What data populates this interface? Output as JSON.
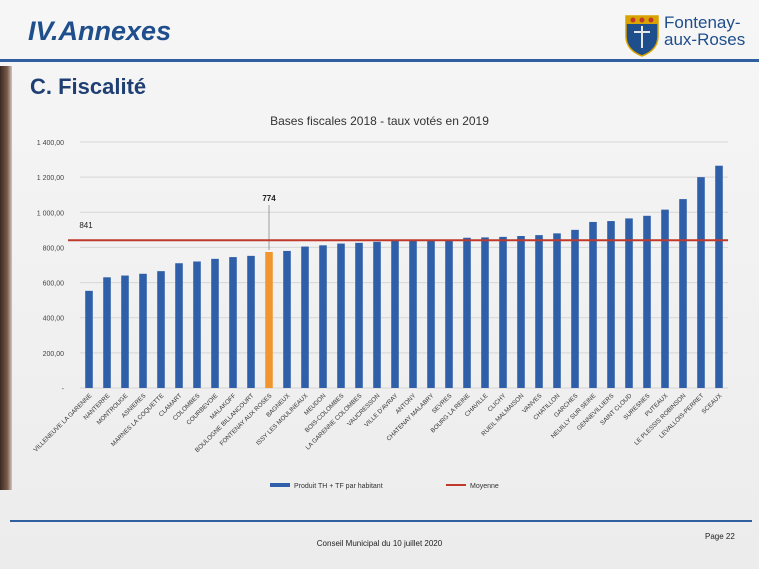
{
  "slide": {
    "title": "IV.Annexes",
    "section": "C. Fiscalité",
    "logo_text_1": "Fontenay-",
    "logo_text_2": "aux-Roses",
    "footer": "Conseil Municipal du 10 juillet 2020",
    "page": "Page 22"
  },
  "colors": {
    "bar": "#2e5fa8",
    "highlight": "#f0962e",
    "average": "#c0392b",
    "accent": "#1f4e8c"
  },
  "chart_data": {
    "type": "bar",
    "title": "Bases fiscales 2018 - taux votés en 2019",
    "categories": [
      "VILLENEUVE LA GARENNE",
      "NANTERRE",
      "MONTROUGE",
      "ASNIERES",
      "MARNES LA COQUETTE",
      "CLAMART",
      "COLOMBES",
      "COURBEVOIE",
      "MALAKOFF",
      "BOULOGNE BILLANCOURT",
      "FONTENAY AUX ROSES",
      "BAGNEUX",
      "ISSY LES MOULINEAUX",
      "MEUDON",
      "BOIS-COLOMBES",
      "LA GARENNE COLOMBES",
      "VAUCRESSON",
      "VILLE D'AVRAY",
      "ANTONY",
      "CHATENAY MALABRY",
      "SEVRES",
      "BOURG LA REINE",
      "CHAVILLE",
      "CLICHY",
      "RUEIL MALMAISON",
      "VANVES",
      "CHATILLON",
      "GARCHES",
      "NEUILLY SUR SEINE",
      "GENNEVILLIERS",
      "SAINT CLOUD",
      "SURESNES",
      "PUTEAUX",
      "LE PLESSIS ROBINSON",
      "LEVALLOIS-PERRET",
      "SCEAUX"
    ],
    "values": [
      553,
      630,
      640,
      650,
      665,
      710,
      720,
      735,
      745,
      752,
      774,
      780,
      805,
      812,
      822,
      826,
      832,
      838,
      840,
      842,
      845,
      855,
      857,
      860,
      865,
      870,
      880,
      900,
      945,
      950,
      965,
      980,
      1015,
      1075,
      1200,
      1265
    ],
    "highlight_category": "FONTENAY AUX ROSES",
    "highlight_label": "774",
    "average": {
      "name": "Moyenne",
      "value": 841,
      "label": "841"
    },
    "series_name": "Produit TH + TF par habitant",
    "ylim": [
      0,
      1400
    ],
    "yticks": [
      {
        "value": 0,
        "label": "-"
      },
      {
        "value": 200,
        "label": "200,00"
      },
      {
        "value": 400,
        "label": "400,00"
      },
      {
        "value": 600,
        "label": "600,00"
      },
      {
        "value": 800,
        "label": "800,00"
      },
      {
        "value": 1000,
        "label": "1 000,00"
      },
      {
        "value": 1200,
        "label": "1 200,00"
      },
      {
        "value": 1400,
        "label": "1 400,00"
      }
    ],
    "grid": true,
    "legend": "bottom"
  }
}
